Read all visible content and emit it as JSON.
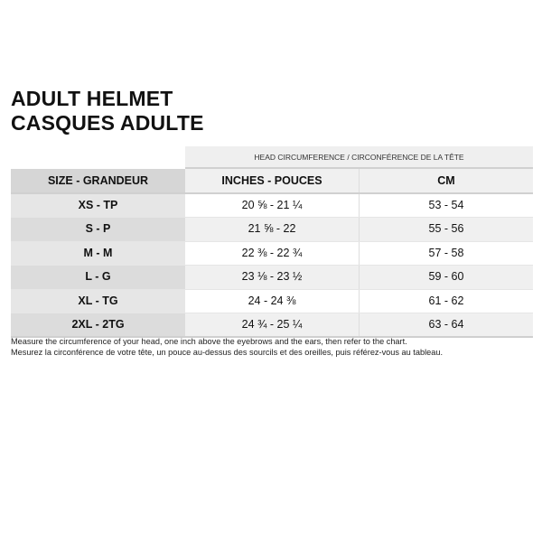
{
  "title": [
    "ADULT HELMET",
    "CASQUES ADULTE"
  ],
  "group_header": "HEAD CIRCUMFERENCE / CIRCONFÉRENCE DE LA TÊTE",
  "columns": [
    "SIZE - GRANDEUR",
    "INCHES - POUCES",
    "CM"
  ],
  "rows": [
    {
      "size": "XS - TP",
      "inches": "20 ⅝ - 21 ¼",
      "cm": "53 - 54"
    },
    {
      "size": "S - P",
      "inches": "21 ⅝ - 22",
      "cm": "55 - 56"
    },
    {
      "size": "M - M",
      "inches": "22 ⅜ - 22 ¾",
      "cm": "57 - 58"
    },
    {
      "size": "L - G",
      "inches": "23 ⅛ - 23 ½",
      "cm": "59 - 60"
    },
    {
      "size": "XL - TG",
      "inches": "24 - 24 ⅜",
      "cm": "61 - 62"
    },
    {
      "size": "2XL - 2TG",
      "inches": "24 ¾ - 25 ¼",
      "cm": "63 - 64"
    }
  ],
  "notes": [
    "Measure the circumference of your head, one inch above the eyebrows and the ears, then refer to the chart.",
    "Mesurez la circonférence de votre tête, un pouce au-dessus des sourcils et des oreilles, puis référez-vous au tableau."
  ]
}
